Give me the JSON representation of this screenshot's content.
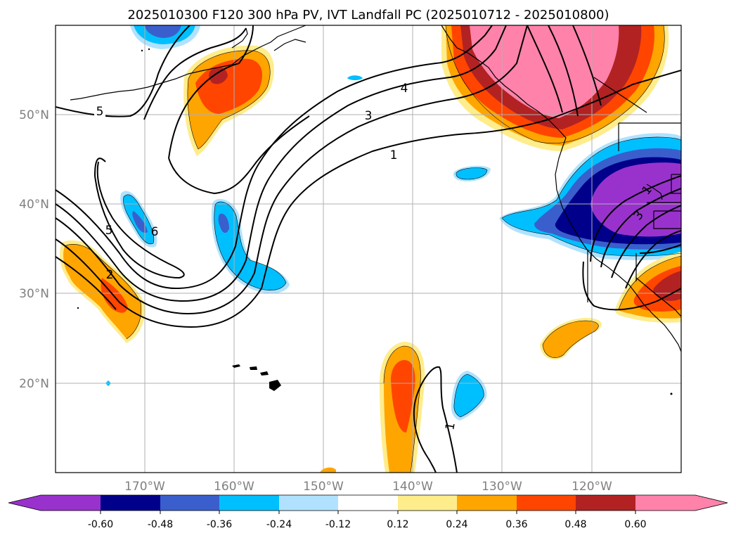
{
  "map": {
    "title": "2025010300 F120 300 hPa PV, IVT Landfall PC (2025010712 - 2025010800)",
    "lat_labels": [
      "50°N",
      "40°N",
      "30°N",
      "20°N"
    ],
    "lon_labels": [
      "170°W",
      "160°W",
      "150°W",
      "140°W",
      "130°W",
      "120°W"
    ],
    "contour_labels": [
      "5",
      "4",
      "3",
      "1",
      "5",
      "6",
      "2",
      "1",
      "3",
      "1"
    ]
  },
  "colorbar": {
    "ticks": [
      "-0.60",
      "-0.48",
      "-0.36",
      "-0.24",
      "-0.12",
      "0.12",
      "0.24",
      "0.36",
      "0.48",
      "0.60"
    ],
    "colors": {
      "below": "#9932cc",
      "b1": "#00008b",
      "b2": "#3a5fcd",
      "b3": "#00bfff",
      "b4": "#b0e2ff",
      "b5": "#ffffff",
      "b6": "#ffec8b",
      "b7": "#ffa500",
      "b8": "#ff4500",
      "b9": "#b22222",
      "above": "#ff82ab"
    }
  }
}
